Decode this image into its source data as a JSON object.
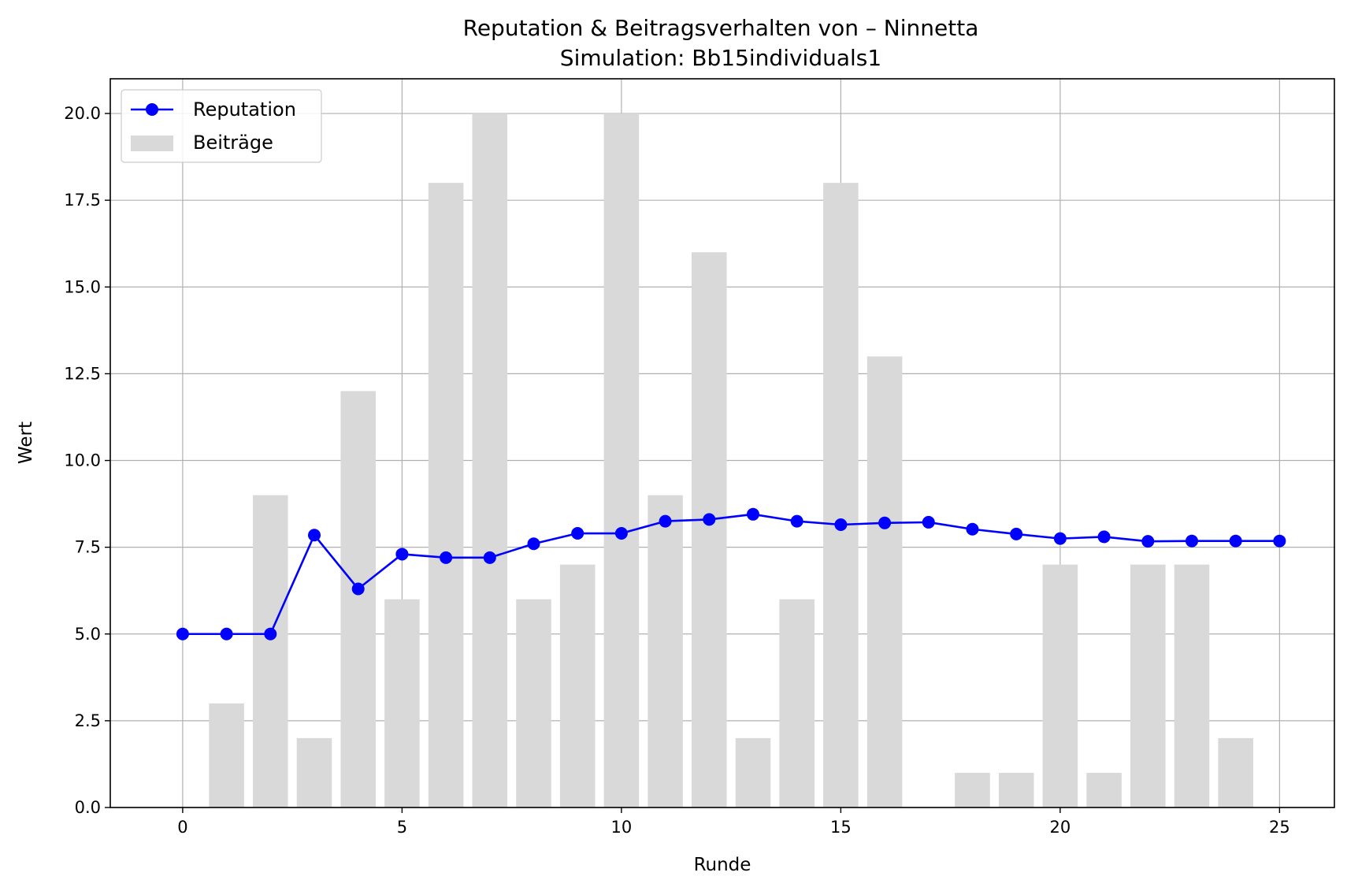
{
  "chart_data": {
    "type": "bar+line",
    "title": "Reputation & Beitragsverhalten von – Ninnetta",
    "subtitle": "Simulation: Bb15individuals1",
    "xlabel": "Runde",
    "ylabel": "Wert",
    "xlim": [
      -1.65,
      26.25
    ],
    "ylim": [
      0,
      21
    ],
    "xticks": [
      0,
      5,
      10,
      15,
      20,
      25
    ],
    "yticks": [
      0.0,
      2.5,
      5.0,
      7.5,
      10.0,
      12.5,
      15.0,
      17.5,
      20.0
    ],
    "grid": true,
    "legend": "upper left",
    "series": [
      {
        "name": "Reputation",
        "kind": "line",
        "marker": "circle",
        "color": "#0000ff",
        "x": [
          0,
          1,
          2,
          3,
          4,
          5,
          6,
          7,
          8,
          9,
          10,
          11,
          12,
          13,
          14,
          15,
          16,
          17,
          18,
          19,
          20,
          21,
          22,
          23,
          24,
          25
        ],
        "values": [
          5.0,
          5.0,
          5.0,
          7.85,
          6.3,
          7.3,
          7.2,
          7.2,
          7.6,
          7.9,
          7.9,
          8.25,
          8.3,
          8.45,
          8.25,
          8.15,
          8.2,
          8.22,
          8.02,
          7.88,
          7.75,
          7.8,
          7.67,
          7.68,
          7.68,
          7.68
        ]
      },
      {
        "name": "Beiträge",
        "kind": "bar",
        "color": "#d9d9d9",
        "x": [
          1,
          2,
          3,
          4,
          5,
          6,
          7,
          8,
          9,
          10,
          11,
          12,
          13,
          14,
          15,
          16,
          18,
          19,
          20,
          21,
          22,
          23,
          24
        ],
        "values": [
          3,
          9,
          2,
          12,
          6,
          18,
          20,
          6,
          7,
          20,
          9,
          16,
          2,
          6,
          18,
          13,
          1,
          1,
          7,
          1,
          7,
          7,
          2
        ]
      }
    ]
  }
}
